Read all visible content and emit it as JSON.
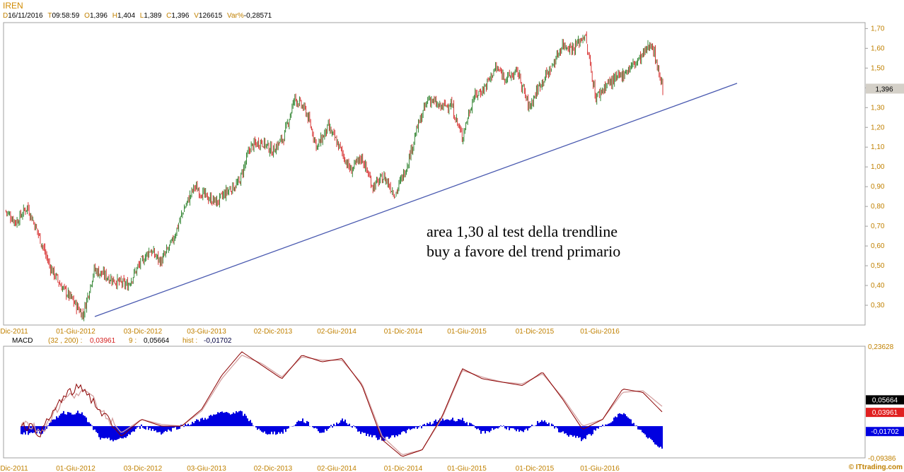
{
  "header": {
    "symbol": "IREN",
    "fields": [
      {
        "k": "D",
        "v": "16/11/2016"
      },
      {
        "k": "T",
        "v": "09:58:59"
      },
      {
        "k": "O",
        "v": "1,396"
      },
      {
        "k": "H",
        "v": "1,404"
      },
      {
        "k": "L",
        "v": "1,389"
      },
      {
        "k": "C",
        "v": "1,396"
      },
      {
        "k": "V",
        "v": "126615"
      },
      {
        "k": "Var%",
        "v": "-0,28571"
      }
    ]
  },
  "colors": {
    "axis_text": "#c08000",
    "up_candle": "#1f7a1f",
    "down_candle": "#d42020",
    "trendline": "#4a5ab0",
    "macd_line": "#8b0000",
    "signal_line": "#d4a0a0",
    "histogram": "#0000e0",
    "price_tag_bg": "#d4d0c8",
    "macd_tag_bg": "#000000",
    "signal_tag_bg": "#e02020",
    "hist_tag_bg": "#0000e0"
  },
  "x_axis_labels": [
    "Dic-2011",
    "01-Giu-2012",
    "03-Dic-2012",
    "03-Giu-2013",
    "02-Dic-2013",
    "02-Giu-2014",
    "01-Dic-2014",
    "01-Giu-2015",
    "01-Dic-2015",
    "01-Giu-2016"
  ],
  "annotation": [
    "area 1,30 al test della trendline",
    "buy a favore del trend primario"
  ],
  "macd_panel": {
    "name": "MACD",
    "params": "(32 , 200) :",
    "macd_value": "0,03961",
    "signal_period": "9 :",
    "signal_value": "0,05664",
    "hist_label": "hist :",
    "hist_value": "-0,01702",
    "scale_top": "0,23628",
    "scale_bottom": "-0,09386",
    "tags": {
      "signal": "0,05664",
      "macd": "0,03961",
      "hist": "-0,01702"
    }
  },
  "watermark": "© ITtrading.com",
  "chart_data": [
    {
      "type": "candlestick",
      "title": "IREN",
      "ylim": [
        0.2,
        1.73
      ],
      "y_ticks": [
        "1,70",
        "1,60",
        "1,50",
        "1,40",
        "1,30",
        "1,20",
        "1,10",
        "1,00",
        "0,90",
        "0,80",
        "0,70",
        "0,60",
        "0,50",
        "0,40",
        "0,30"
      ],
      "last_price_tag": "1,396",
      "close_path": [
        [
          "Dic-2011",
          0.78
        ],
        [
          "Gen-2012",
          0.72
        ],
        [
          "Feb-2012",
          0.8
        ],
        [
          "Mar-2012",
          0.66
        ],
        [
          "Apr-2012",
          0.5
        ],
        [
          "Mag-2012",
          0.4
        ],
        [
          "Giu-2012",
          0.33
        ],
        [
          "Lug-2012",
          0.25
        ],
        [
          "Ago-2012",
          0.48
        ],
        [
          "Set-2012",
          0.45
        ],
        [
          "Ott-2012",
          0.42
        ],
        [
          "Nov-2012",
          0.4
        ],
        [
          "Dic-2012",
          0.5
        ],
        [
          "Gen-2013",
          0.58
        ],
        [
          "Feb-2013",
          0.52
        ],
        [
          "Mar-2013",
          0.62
        ],
        [
          "Apr-2013",
          0.78
        ],
        [
          "Mag-2013",
          0.9
        ],
        [
          "Giu-2013",
          0.85
        ],
        [
          "Lug-2013",
          0.82
        ],
        [
          "Ago-2013",
          0.88
        ],
        [
          "Set-2013",
          0.92
        ],
        [
          "Ott-2013",
          1.1
        ],
        [
          "Nov-2013",
          1.13
        ],
        [
          "Dic-2013",
          1.08
        ],
        [
          "Gen-2014",
          1.15
        ],
        [
          "Feb-2014",
          1.35
        ],
        [
          "Mar-2014",
          1.28
        ],
        [
          "Apr-2014",
          1.1
        ],
        [
          "Mag-2014",
          1.2
        ],
        [
          "Giu-2014",
          1.1
        ],
        [
          "Lug-2014",
          0.98
        ],
        [
          "Ago-2014",
          1.05
        ],
        [
          "Set-2014",
          0.9
        ],
        [
          "Ott-2014",
          0.95
        ],
        [
          "Nov-2014",
          0.86
        ],
        [
          "Dic-2014",
          1.0
        ],
        [
          "Gen-2015",
          1.2
        ],
        [
          "Feb-2015",
          1.35
        ],
        [
          "Mar-2015",
          1.3
        ],
        [
          "Apr-2015",
          1.32
        ],
        [
          "Mag-2015",
          1.15
        ],
        [
          "Giu-2015",
          1.35
        ],
        [
          "Lug-2015",
          1.4
        ],
        [
          "Ago-2015",
          1.5
        ],
        [
          "Set-2015",
          1.45
        ],
        [
          "Ott-2015",
          1.48
        ],
        [
          "Nov-2015",
          1.3
        ],
        [
          "Dic-2015",
          1.42
        ],
        [
          "Gen-2016",
          1.5
        ],
        [
          "Feb-2016",
          1.62
        ],
        [
          "Mar-2016",
          1.6
        ],
        [
          "Apr-2016",
          1.67
        ],
        [
          "Mag-2016",
          1.35
        ],
        [
          "Giu-2016",
          1.42
        ],
        [
          "Lug-2016",
          1.45
        ],
        [
          "Ago-2016",
          1.5
        ],
        [
          "Set-2016",
          1.55
        ],
        [
          "Ott-2016",
          1.63
        ],
        [
          "Nov-2016",
          1.396
        ]
      ],
      "trendline": {
        "start": [
          "Lug-2012",
          0.25
        ],
        "end": [
          "Ott-2016",
          1.43
        ]
      }
    },
    {
      "type": "line",
      "title": "MACD (32 , 200)",
      "ylim": [
        -0.09386,
        0.23628
      ],
      "series": [
        {
          "name": "MACD",
          "values": [
            0.01,
            -0.02,
            0.08,
            0.12,
            0.04,
            -0.03,
            0.02,
            0.0,
            0.0,
            0.05,
            0.15,
            0.22,
            0.18,
            0.14,
            0.21,
            0.19,
            0.2,
            0.12,
            -0.04,
            -0.09,
            -0.07,
            0.03,
            0.17,
            0.14,
            0.13,
            0.12,
            0.16,
            0.08,
            -0.01,
            0.02,
            0.11,
            0.1,
            0.04
          ]
        },
        {
          "name": "9",
          "values": [
            0.015,
            -0.015,
            0.07,
            0.11,
            0.05,
            -0.02,
            0.02,
            0.005,
            0.0,
            0.045,
            0.14,
            0.21,
            0.185,
            0.145,
            0.205,
            0.195,
            0.195,
            0.125,
            -0.03,
            -0.085,
            -0.07,
            0.025,
            0.165,
            0.145,
            0.13,
            0.125,
            0.155,
            0.085,
            0.0,
            0.02,
            0.1,
            0.105,
            0.057
          ]
        }
      ]
    }
  ]
}
